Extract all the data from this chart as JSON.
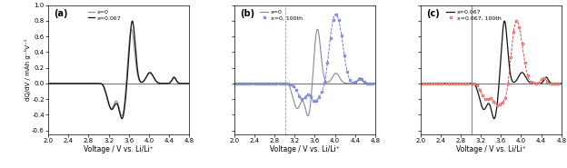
{
  "xlim": [
    2.0,
    4.8
  ],
  "ylim": [
    -0.65,
    1.0
  ],
  "xticks": [
    2.0,
    2.4,
    2.8,
    3.2,
    3.6,
    4.0,
    4.4,
    4.8
  ],
  "yticks": [
    -0.6,
    -0.4,
    -0.2,
    0.0,
    0.2,
    0.4,
    0.6,
    0.8,
    1.0
  ],
  "xlabel": "Voltage / V vs. Li/Li⁺",
  "ylabel": "dQ/dV / mAh g⁻¹V⁻¹",
  "panel_labels": [
    "(a)",
    "(b)",
    "(c)"
  ],
  "figsize": [
    6.24,
    1.85
  ],
  "dpi": 100,
  "colors": {
    "gray": "#888888",
    "black": "#111111",
    "blue": "#5566cc",
    "blue_face": "#9999dd",
    "red": "#cc3333",
    "red_face": "#ee9999",
    "vline_b": "#999999",
    "vline_c": "#00bbbb"
  },
  "legend_entries": {
    "a": [
      "x=0",
      "x=0.067"
    ],
    "b": [
      "x=0",
      "x=0, 100th"
    ],
    "c": [
      "x=0.067",
      "x=0.067, 100th"
    ]
  }
}
